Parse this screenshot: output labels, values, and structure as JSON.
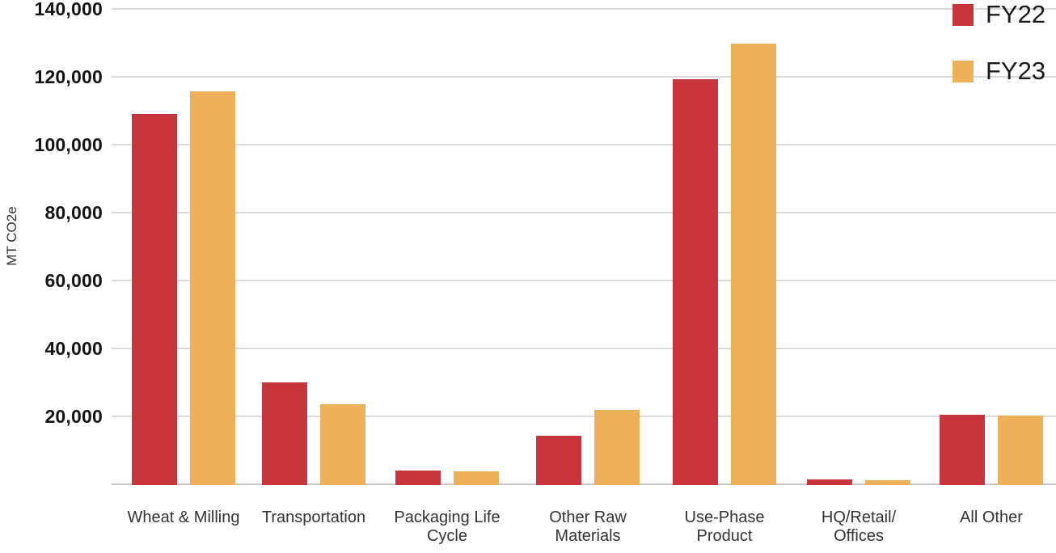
{
  "chart_data": {
    "type": "bar",
    "title": "",
    "xlabel": "",
    "ylabel": "MT CO2e",
    "ylim": [
      0,
      140000
    ],
    "grid": "horizontal-gridlines",
    "legend_position": "top-right",
    "yticks": [
      20000,
      40000,
      60000,
      80000,
      100000,
      120000,
      140000
    ],
    "ytick_labels": [
      "20,000",
      "40,000",
      "60,000",
      "80,000",
      "100,000",
      "120,000",
      "140,000"
    ],
    "categories": [
      "Wheat & Milling",
      "Transportation",
      "Packaging Life Cycle",
      "Other Raw Materials",
      "Use-Phase Product",
      "HQ/Retail/Offices",
      "All Other"
    ],
    "category_label_lines": [
      [
        "Wheat & Milling"
      ],
      [
        "Transportation"
      ],
      [
        "Packaging Life",
        "Cycle"
      ],
      [
        "Other Raw",
        "Materials"
      ],
      [
        "Use-Phase",
        "Product"
      ],
      [
        "HQ/Retail/",
        "Offices"
      ],
      [
        "All Other"
      ]
    ],
    "series": [
      {
        "name": "FY22",
        "color": "#C9353D",
        "values": [
          109300,
          30200,
          4300,
          14500,
          119500,
          1700,
          20700
        ]
      },
      {
        "name": "FY23",
        "color": "#EEB15A",
        "values": [
          116000,
          23800,
          4100,
          22200,
          130000,
          1500,
          20500
        ]
      }
    ]
  },
  "colors": {
    "fy22_red": "#C9353D",
    "fy23_orange": "#EEB15A",
    "gridline": "#DADADA",
    "baseline": "#C6C6C6",
    "axis_tick_text": "#141414",
    "category_text": "#333333",
    "legend_text": "#1A1A1A"
  }
}
